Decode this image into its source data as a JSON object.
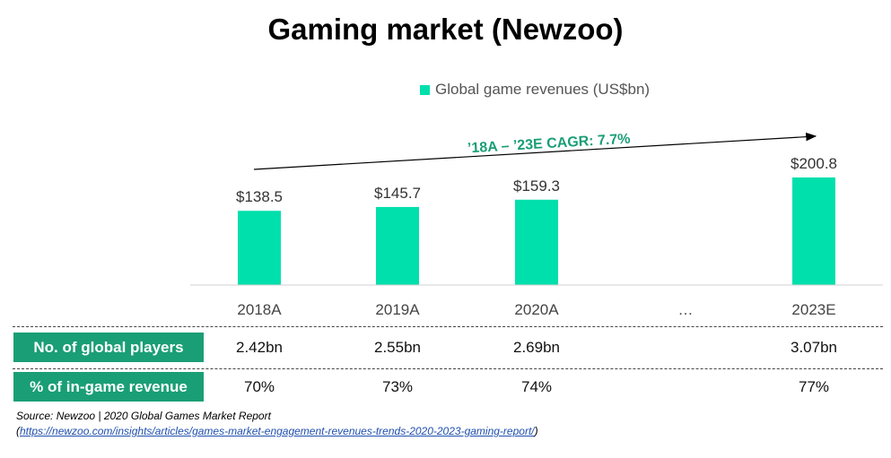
{
  "title": "Gaming market (Newzoo)",
  "legend": {
    "label": "Global game revenues (US$bn)"
  },
  "cagr_label": "’18A – ’23E CAGR: 7.7%",
  "colors": {
    "bar": "#00E0AC",
    "row_header": "#1A9E76",
    "cagr_text": "#1A9E76"
  },
  "chart_data": {
    "type": "bar",
    "title": "Gaming market (Newzoo)",
    "categories": [
      "2018A",
      "2019A",
      "2020A",
      "…",
      "2023E"
    ],
    "series": [
      {
        "name": "Global game revenues (US$bn)",
        "values": [
          138.5,
          145.7,
          159.3,
          null,
          200.8
        ]
      }
    ],
    "data_labels": [
      "$138.5",
      "$145.7",
      "$159.3",
      "",
      "$200.8"
    ],
    "ylim": [
      0,
      200.8
    ],
    "annotation": "’18A – ’23E CAGR: 7.7%",
    "legend_position": "top"
  },
  "table": {
    "rows": [
      {
        "label": "No. of global players",
        "values": [
          "2.42bn",
          "2.55bn",
          "2.69bn",
          "",
          "3.07bn"
        ]
      },
      {
        "label": "% of in-game revenue",
        "values": [
          "70%",
          "73%",
          "74%",
          "",
          "77%"
        ]
      }
    ]
  },
  "source": {
    "text": "Source: Newzoo | 2020 Global Games Market Report",
    "link_open": "(",
    "link": "https://newzoo.com/insights/articles/games-market-engagement-revenues-trends-2020-2023-gaming-report/",
    "link_close": ")"
  }
}
